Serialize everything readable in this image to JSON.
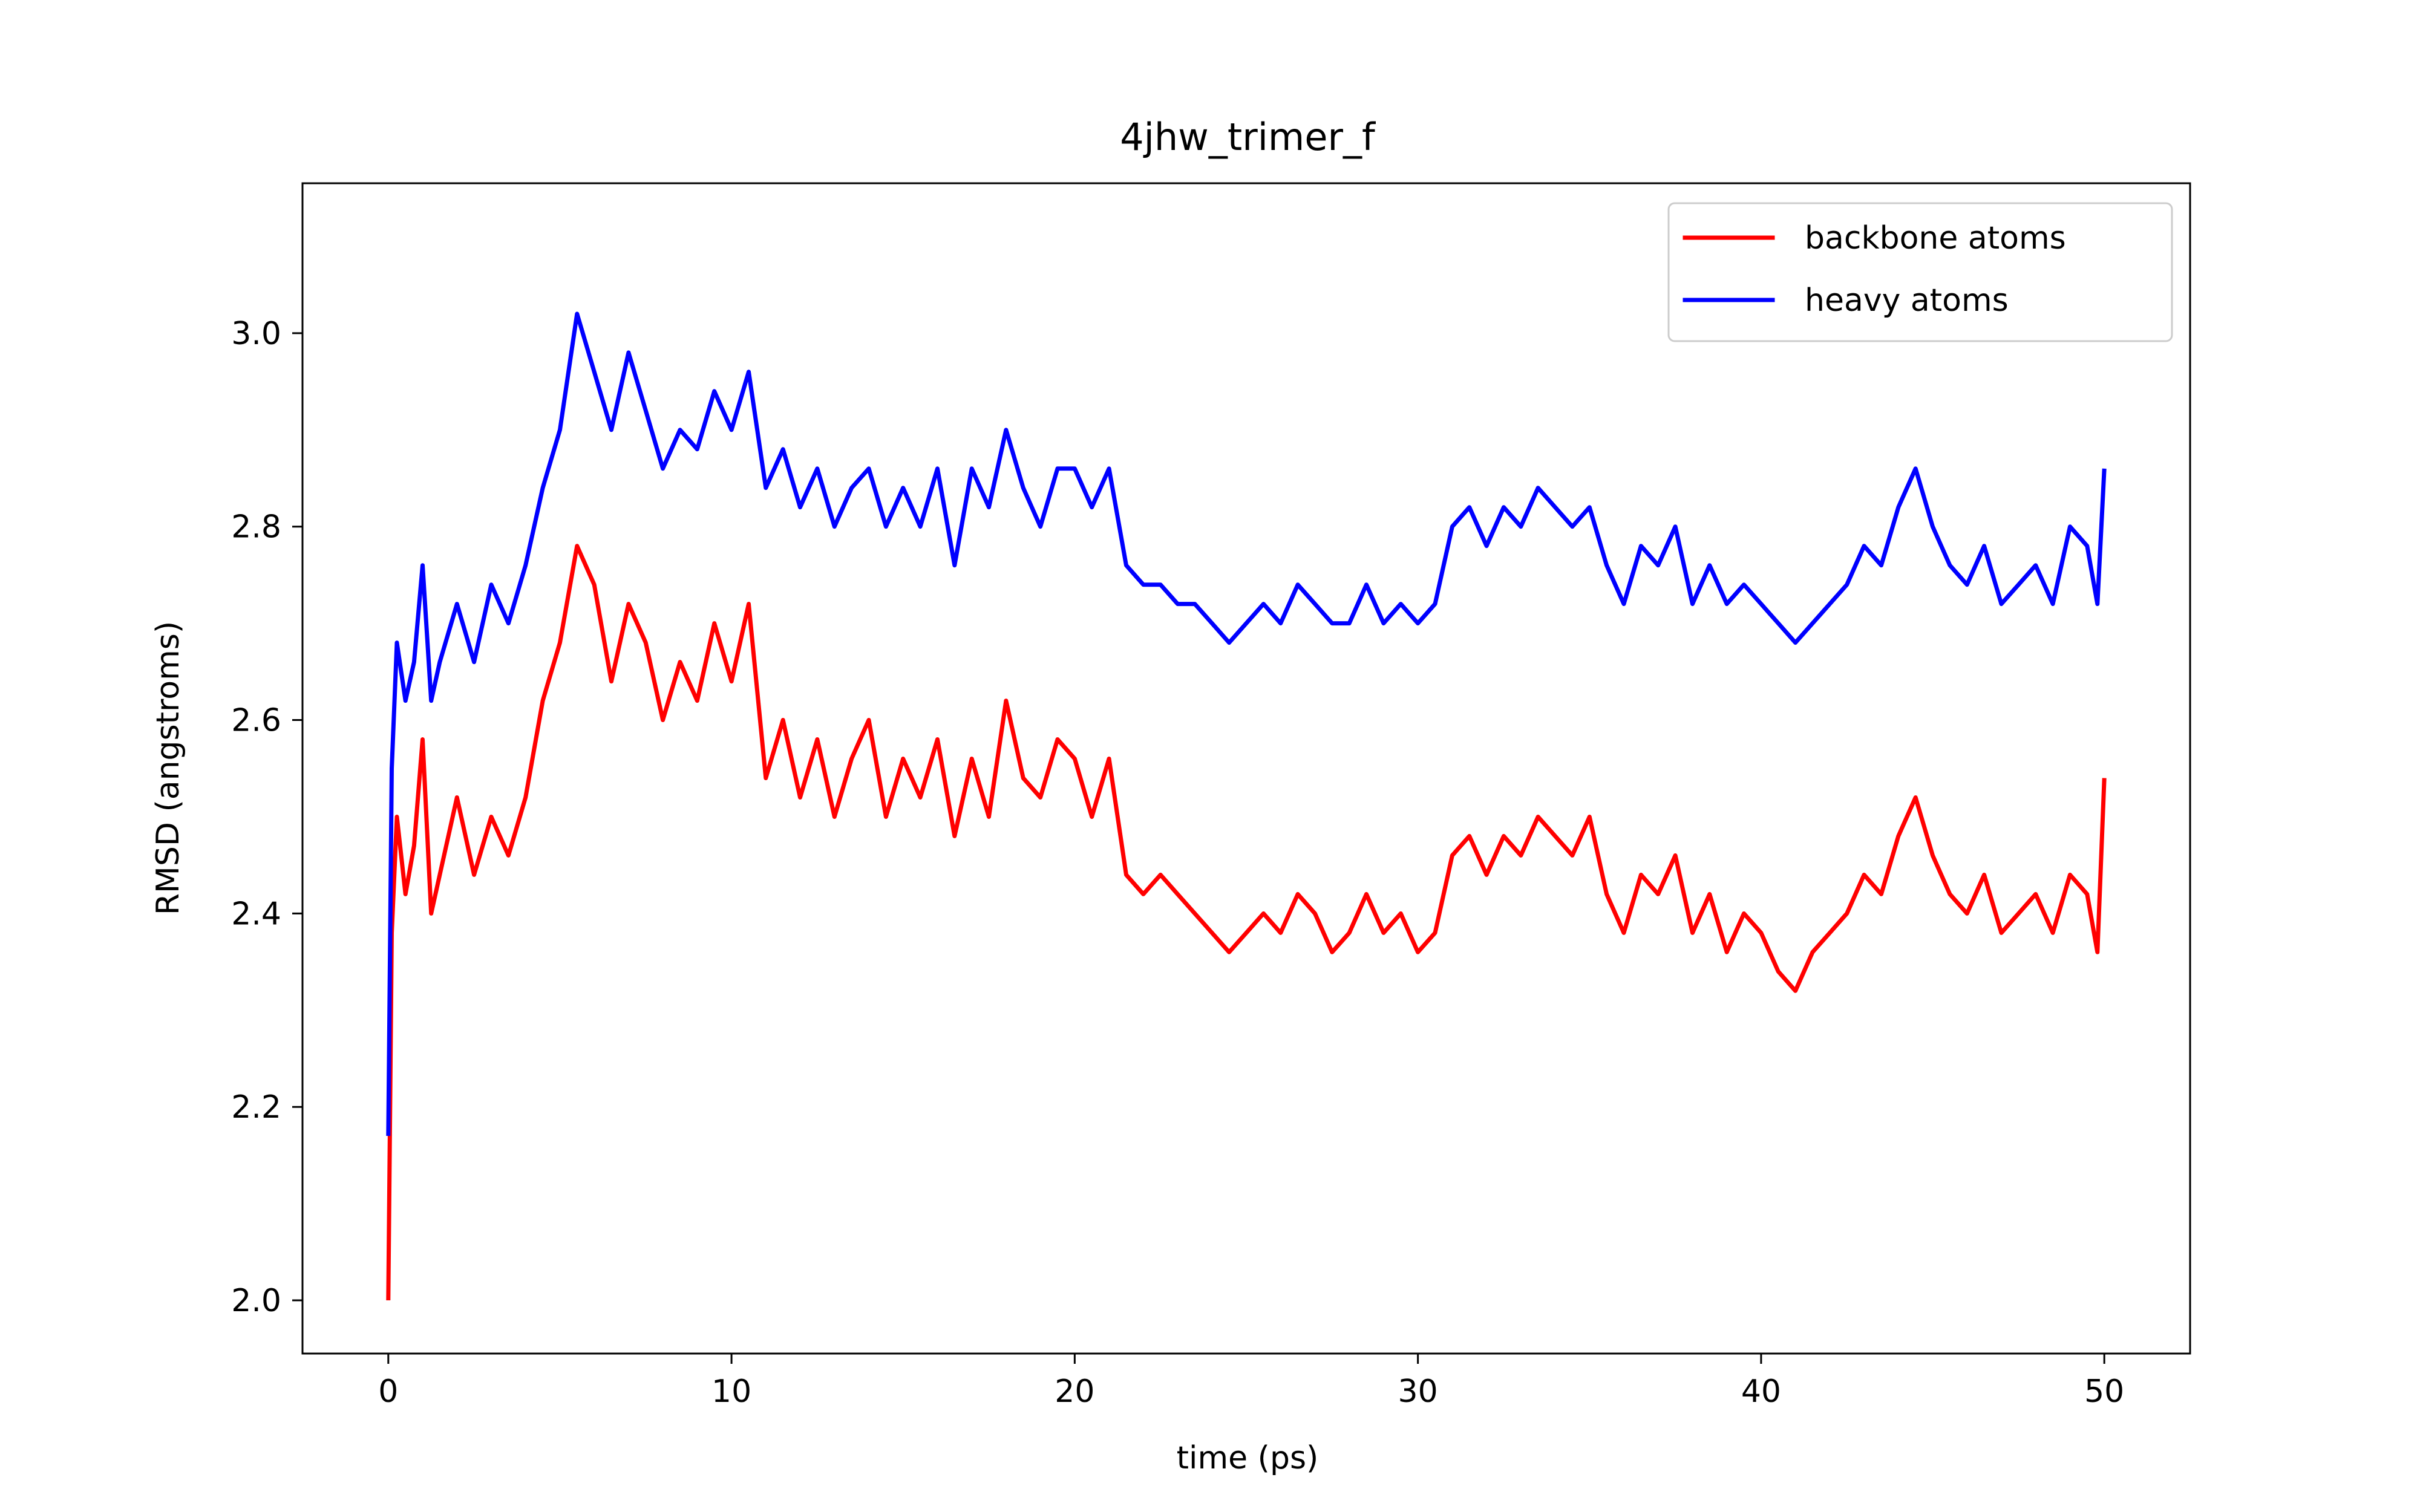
{
  "chart_data": {
    "type": "line",
    "title": "4jhw_trimer_f",
    "xlabel": "time (ps)",
    "ylabel": "RMSD (angstroms)",
    "xlim": [
      -2.5,
      52.5
    ],
    "ylim": [
      1.945,
      3.155
    ],
    "xticks": [
      0,
      10,
      20,
      30,
      40,
      50
    ],
    "yticks": [
      2.0,
      2.2,
      2.4,
      2.6,
      2.8,
      3.0
    ],
    "xtick_labels": [
      "0",
      "10",
      "20",
      "30",
      "40",
      "50"
    ],
    "ytick_labels": [
      "2.0",
      "2.2",
      "2.4",
      "2.6",
      "2.8",
      "3.0"
    ],
    "grid": false,
    "legend": {
      "placement": "top-right"
    },
    "x": [
      0,
      0.1,
      0.25,
      0.5,
      0.75,
      1,
      1.25,
      1.5,
      2,
      2.5,
      3,
      3.5,
      4,
      4.5,
      5,
      5.5,
      6,
      6.5,
      7,
      7.5,
      8,
      8.5,
      9,
      9.5,
      10,
      10.5,
      11,
      11.5,
      12,
      12.5,
      13,
      13.5,
      14,
      14.5,
      15,
      15.5,
      16,
      16.5,
      17,
      17.5,
      18,
      18.5,
      19,
      19.5,
      20,
      20.5,
      21,
      21.5,
      22,
      22.5,
      23,
      23.5,
      24,
      24.5,
      25,
      25.5,
      26,
      26.5,
      27,
      27.5,
      28,
      28.5,
      29,
      29.5,
      30,
      30.5,
      31,
      31.5,
      32,
      32.5,
      33,
      33.5,
      34,
      34.5,
      35,
      35.5,
      36,
      36.5,
      37,
      37.5,
      38,
      38.5,
      39,
      39.5,
      40,
      40.5,
      41,
      41.5,
      42,
      42.5,
      43,
      43.5,
      44,
      44.5,
      45,
      45.5,
      46,
      46.5,
      47,
      47.5,
      48,
      48.5,
      49,
      49.5,
      49.8,
      50
    ],
    "series": [
      {
        "name": "backbone atoms",
        "color": "#ff0000",
        "values": [
          2.0,
          2.38,
          2.5,
          2.42,
          2.47,
          2.58,
          2.4,
          2.44,
          2.52,
          2.44,
          2.5,
          2.46,
          2.52,
          2.62,
          2.68,
          2.78,
          2.74,
          2.64,
          2.72,
          2.68,
          2.6,
          2.66,
          2.62,
          2.7,
          2.64,
          2.72,
          2.54,
          2.6,
          2.52,
          2.58,
          2.5,
          2.56,
          2.6,
          2.5,
          2.56,
          2.52,
          2.58,
          2.48,
          2.56,
          2.5,
          2.62,
          2.54,
          2.52,
          2.58,
          2.56,
          2.5,
          2.56,
          2.44,
          2.42,
          2.44,
          2.42,
          2.4,
          2.38,
          2.36,
          2.38,
          2.4,
          2.38,
          2.42,
          2.4,
          2.36,
          2.38,
          2.42,
          2.38,
          2.4,
          2.36,
          2.38,
          2.46,
          2.48,
          2.44,
          2.48,
          2.46,
          2.5,
          2.48,
          2.46,
          2.5,
          2.42,
          2.38,
          2.44,
          2.42,
          2.46,
          2.38,
          2.42,
          2.36,
          2.4,
          2.38,
          2.34,
          2.32,
          2.36,
          2.38,
          2.4,
          2.44,
          2.42,
          2.48,
          2.52,
          2.46,
          2.42,
          2.4,
          2.44,
          2.38,
          2.4,
          2.42,
          2.38,
          2.44,
          2.42,
          2.36,
          2.54
        ]
      },
      {
        "name": "heavy atoms",
        "color": "#0000ff",
        "values": [
          2.17,
          2.55,
          2.68,
          2.62,
          2.66,
          2.76,
          2.62,
          2.66,
          2.72,
          2.66,
          2.74,
          2.7,
          2.76,
          2.84,
          2.9,
          3.02,
          2.96,
          2.9,
          2.98,
          2.92,
          2.86,
          2.9,
          2.88,
          2.94,
          2.9,
          2.96,
          2.84,
          2.88,
          2.82,
          2.86,
          2.8,
          2.84,
          2.86,
          2.8,
          2.84,
          2.8,
          2.86,
          2.76,
          2.86,
          2.82,
          2.9,
          2.84,
          2.8,
          2.86,
          2.86,
          2.82,
          2.86,
          2.76,
          2.74,
          2.74,
          2.72,
          2.72,
          2.7,
          2.68,
          2.7,
          2.72,
          2.7,
          2.74,
          2.72,
          2.7,
          2.7,
          2.74,
          2.7,
          2.72,
          2.7,
          2.72,
          2.8,
          2.82,
          2.78,
          2.82,
          2.8,
          2.84,
          2.82,
          2.8,
          2.82,
          2.76,
          2.72,
          2.78,
          2.76,
          2.8,
          2.72,
          2.76,
          2.72,
          2.74,
          2.72,
          2.7,
          2.68,
          2.7,
          2.72,
          2.74,
          2.78,
          2.76,
          2.82,
          2.86,
          2.8,
          2.76,
          2.74,
          2.78,
          2.72,
          2.74,
          2.76,
          2.72,
          2.8,
          2.78,
          2.72,
          2.86
        ]
      }
    ]
  }
}
